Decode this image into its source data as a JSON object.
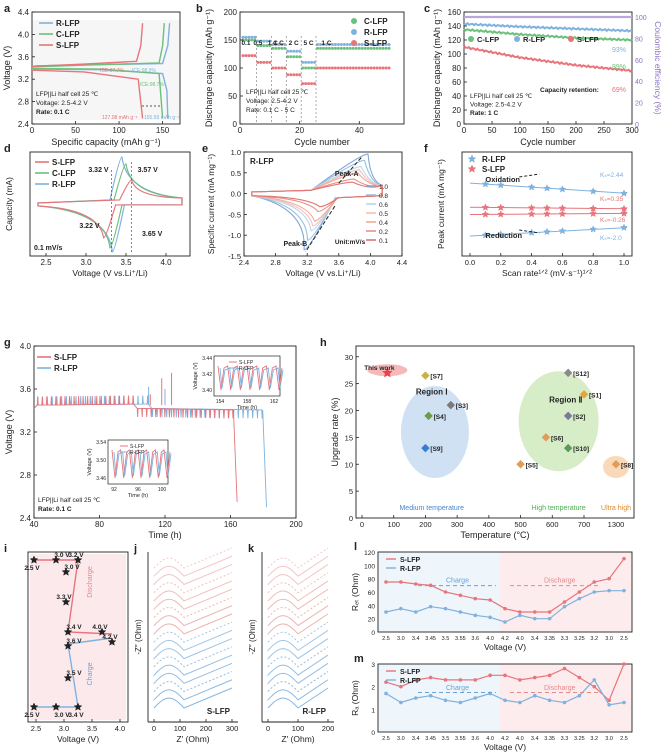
{
  "colors": {
    "s": "#e8747c",
    "c": "#6cc07a",
    "r": "#7fb2de",
    "ink": "#222",
    "guide": "#555",
    "purple": "#b9a7dc"
  },
  "panels": {
    "a": {
      "letter": "a",
      "xlabel": "Specific capacity (mAh g⁻¹)",
      "ylabel": "Voltage (V)",
      "xticks": [
        "0",
        "50",
        "100",
        "150"
      ],
      "yticks": [
        "2.4",
        "2.8",
        "3.2",
        "3.6",
        "4.0",
        "4.4"
      ],
      "legend": [
        "R-LFP",
        "C-LFP",
        "S-LFP"
      ],
      "notes": [
        "LFP||Li half cell 25 ℃",
        "Voltage: 2.5-4.2 V",
        "Rate: 0.1 C"
      ],
      "ice": [
        "ICE:97.7%",
        "ICE:98.9%",
        "ICE:98.7%"
      ],
      "caps": [
        "127.08 mAh g⁻¹",
        "155.59 mAh g⁻¹"
      ],
      "chart_data": {
        "type": "line",
        "xlim": [
          0,
          170
        ],
        "ylim": [
          2.4,
          4.4
        ],
        "series": [
          {
            "name": "R-LFP",
            "charge": [
              [
                0,
                3.42
              ],
              [
                5,
                3.44
              ],
              [
                80,
                3.46
              ],
              [
                150,
                3.48
              ],
              [
                156,
                3.8
              ],
              [
                158,
                4.2
              ]
            ],
            "discharge": [
              [
                0,
                3.38
              ],
              [
                80,
                3.37
              ],
              [
                150,
                3.3
              ],
              [
                155,
                3.0
              ],
              [
                156,
                2.5
              ]
            ]
          },
          {
            "name": "C-LFP",
            "charge": [
              [
                0,
                3.42
              ],
              [
                80,
                3.46
              ],
              [
                146,
                3.49
              ],
              [
                150,
                3.8
              ],
              [
                152,
                4.2
              ]
            ],
            "discharge": [
              [
                0,
                3.39
              ],
              [
                80,
                3.38
              ],
              [
                146,
                3.3
              ],
              [
                150,
                2.5
              ]
            ]
          },
          {
            "name": "S-LFP",
            "charge": [
              [
                0,
                3.43
              ],
              [
                60,
                3.47
              ],
              [
                120,
                3.52
              ],
              [
                125,
                3.8
              ],
              [
                127,
                4.2
              ]
            ],
            "discharge": [
              [
                0,
                3.36
              ],
              [
                60,
                3.33
              ],
              [
                122,
                3.2
              ],
              [
                127,
                2.5
              ]
            ]
          }
        ]
      }
    },
    "b": {
      "letter": "b",
      "xlabel": "Cycle number",
      "ylabel": "Discharge capacity (mAh g⁻¹)",
      "xticks": [
        "0",
        "20",
        "40"
      ],
      "yticks": [
        "0",
        "50",
        "100",
        "150",
        "200"
      ],
      "legend": [
        "C-LFP",
        "R-LFP",
        "S-LFP"
      ],
      "rates": [
        "0.1",
        "0.5",
        "1 C",
        "1 C",
        "2 C",
        "5 C",
        "1 C"
      ],
      "notes": [
        "LFP||Li half cell 25 ℃",
        "Voltage: 2.5-4.2 V",
        "Rate: 0.1 C - 5 C"
      ],
      "chart_data": {
        "type": "scatter",
        "xlim": [
          0,
          55
        ],
        "ylim": [
          0,
          200
        ],
        "series": [
          {
            "name": "C-LFP",
            "segments": [
              [
                1,
                5,
                150
              ],
              [
                6,
                10,
                140
              ],
              [
                11,
                15,
                135
              ],
              [
                16,
                20,
                120
              ],
              [
                21,
                25,
                100
              ],
              [
                26,
                50,
                135
              ]
            ]
          },
          {
            "name": "R-LFP",
            "segments": [
              [
                1,
                5,
                155
              ],
              [
                6,
                10,
                148
              ],
              [
                11,
                15,
                142
              ],
              [
                16,
                20,
                130
              ],
              [
                21,
                25,
                110
              ],
              [
                26,
                50,
                142
              ]
            ]
          },
          {
            "name": "S-LFP",
            "segments": [
              [
                1,
                5,
                122
              ],
              [
                6,
                10,
                110
              ],
              [
                11,
                15,
                100
              ],
              [
                16,
                20,
                88
              ],
              [
                21,
                25,
                72
              ],
              [
                26,
                50,
                100
              ]
            ]
          }
        ]
      }
    },
    "c": {
      "letter": "c",
      "xlabel": "Cycle number",
      "ylabel": "Discharge capacity (mAh g⁻¹)",
      "y2label": "Coulombic efficiency (%)",
      "xticks": [
        "0",
        "50",
        "100",
        "150",
        "200",
        "250",
        "300"
      ],
      "yticks": [
        "0",
        "20",
        "40",
        "60",
        "80",
        "100",
        "120",
        "140",
        "160"
      ],
      "y2ticks": [
        "0",
        "20",
        "40",
        "60",
        "80",
        "100"
      ],
      "legend": [
        "C-LFP",
        "R-LFP",
        "S-LFP"
      ],
      "retention": [
        "93%",
        "89%",
        "69%"
      ],
      "retention_label": "Capacity retention:",
      "notes": [
        "LFP||Li half cell 25 ℃",
        "Voltage: 2.5-4.2 V",
        "Rate: 1 C"
      ],
      "chart_data": {
        "type": "scatter",
        "xlim": [
          0,
          300
        ],
        "ylim": [
          0,
          160
        ],
        "series": [
          {
            "name": "R-LFP",
            "points": [
              [
                0,
                143
              ],
              [
                100,
                139
              ],
              [
                200,
                136
              ],
              [
                300,
                133
              ]
            ]
          },
          {
            "name": "C-LFP",
            "points": [
              [
                0,
                135
              ],
              [
                100,
                128
              ],
              [
                200,
                123
              ],
              [
                300,
                120
              ]
            ]
          },
          {
            "name": "S-LFP",
            "points": [
              [
                0,
                110
              ],
              [
                100,
                95
              ],
              [
                200,
                84
              ],
              [
                300,
                76
              ]
            ]
          },
          {
            "name": "CE",
            "points": [
              [
                0,
                99
              ],
              [
                300,
                100
              ]
            ]
          }
        ]
      }
    },
    "d": {
      "letter": "d",
      "xlabel": "Voltage (V vs.Li⁺/Li)",
      "ylabel": "Capacity (mA)",
      "xticks": [
        "2.5",
        "3.0",
        "3.5",
        "4.0"
      ],
      "legend": [
        "S-LFP",
        "C-LFP",
        "R-LFP"
      ],
      "labels": [
        "3.32 V",
        "3.57 V",
        "3.22 V",
        "3.65 V"
      ],
      "rate": "0.1 mV/s",
      "chart_data": {
        "type": "line",
        "xlim": [
          2.3,
          4.3
        ],
        "peaks": {
          "S-LFP": [
            3.57,
            3.22
          ],
          "C-LFP": [
            3.5,
            3.3
          ],
          "R-LFP": [
            3.45,
            3.33
          ]
        }
      }
    },
    "e": {
      "letter": "e",
      "title": "R-LFP",
      "xlabel": "Voltage (V vs.Li⁺/Li)",
      "ylabel": "Specific current (mA mg⁻¹)",
      "xticks": [
        "2.4",
        "2.8",
        "3.2",
        "3.6",
        "4.0",
        "4.4"
      ],
      "yticks": [
        "1.0",
        "0.5",
        "0.0",
        "-0.5",
        "-1.0",
        "-1.5"
      ],
      "peakA": "Peak-A",
      "peakB": "Peak-B",
      "unit": "Unit:mV/s",
      "scan_rates": [
        "1.0",
        "0.8",
        "0.6",
        "0.5",
        "0.4",
        "0.2",
        "0.1"
      ],
      "chart_data": {
        "type": "line",
        "xlim": [
          2.4,
          4.4
        ],
        "ylim": [
          -1.5,
          1.0
        ]
      }
    },
    "f": {
      "letter": "f",
      "xlabel": "Scan rate¹ᐟ² (mV·s⁻¹)¹ᐟ²",
      "ylabel": "Peak current (mA mg⁻¹)",
      "xticks": [
        "0.0",
        "0.2",
        "0.4",
        "0.6",
        "0.8",
        "1.0"
      ],
      "legend": [
        "R-LFP",
        "S-LFP"
      ],
      "ks": [
        "Kₛ=2.44",
        "Kₛ=0.35",
        "Kₛ=-0.26",
        "Kₛ=-2.0"
      ],
      "oxidation": "Oxidation",
      "reduction": "Reduction",
      "chart_data": {
        "type": "scatter",
        "x": [
          0.1,
          0.2,
          0.4,
          0.5,
          0.6,
          0.8,
          1.0
        ],
        "series": [
          {
            "name": "R-LFP oxidation",
            "slope": 2.44
          },
          {
            "name": "S-LFP oxidation",
            "slope": 0.35
          },
          {
            "name": "S-LFP reduction",
            "slope": -0.26
          },
          {
            "name": "R-LFP reduction",
            "slope": -2.0
          }
        ]
      }
    },
    "g": {
      "letter": "g",
      "xlabel": "Time (h)",
      "ylabel": "Voltage (V)",
      "xticks": [
        "40",
        "80",
        "120",
        "160",
        "200"
      ],
      "yticks": [
        "2.4",
        "2.8",
        "3.2",
        "3.6",
        "4.0"
      ],
      "legend": [
        "S-LFP",
        "R-LFP"
      ],
      "notes": [
        "LFP||Li half cell 25 ℃",
        "Rate: 0.1 C"
      ],
      "inset1": {
        "ylabel": "Voltage (V)",
        "xlabel": "Time (h)",
        "xticks": [
          "154",
          "158",
          "162"
        ],
        "yticks": [
          "3.40",
          "3.42",
          "3.44"
        ],
        "legend": [
          "S-LFP",
          "R-LFP"
        ]
      },
      "inset2": {
        "ylabel": "Voltage (V)",
        "xlabel": "Time (h)",
        "xticks": [
          "92",
          "96",
          "100"
        ],
        "yticks": [
          "3.46",
          "3.50",
          "3.54"
        ],
        "legend": [
          "S-LFP",
          "R-LFP"
        ]
      },
      "chart_data": {
        "type": "line",
        "xlim": [
          40,
          200
        ],
        "ylim": [
          2.4,
          4.0
        ]
      }
    },
    "h": {
      "letter": "h",
      "xlabel": "Temperature (°C)",
      "ylabel": "Upgrade rate (%)",
      "xticks": [
        "0",
        "100",
        "200",
        "300",
        "400",
        "500",
        "600",
        "700",
        "1300"
      ],
      "yticks": [
        "0",
        "5",
        "10",
        "15",
        "20",
        "25",
        "30"
      ],
      "this_work": "This work",
      "region1": "Region Ⅰ",
      "region2": "Region Ⅱ",
      "cats": [
        "Medium temperature",
        "High temperature",
        "Ultra high"
      ],
      "chart_data": {
        "type": "scatter",
        "points": [
          {
            "label": "This work",
            "x": 80,
            "y": 27
          },
          {
            "label": "[S7]",
            "x": 200,
            "y": 26.5
          },
          {
            "label": "[S3]",
            "x": 280,
            "y": 21
          },
          {
            "label": "[S4]",
            "x": 210,
            "y": 19
          },
          {
            "label": "[S9]",
            "x": 200,
            "y": 13
          },
          {
            "label": "[S12]",
            "x": 650,
            "y": 27
          },
          {
            "label": "[S1]",
            "x": 700,
            "y": 23
          },
          {
            "label": "[S2]",
            "x": 650,
            "y": 19
          },
          {
            "label": "[S6]",
            "x": 580,
            "y": 15
          },
          {
            "label": "[S10]",
            "x": 650,
            "y": 13
          },
          {
            "label": "[S5]",
            "x": 500,
            "y": 10
          },
          {
            "label": "[S8]",
            "x": 1300,
            "y": 10
          }
        ]
      }
    },
    "i": {
      "letter": "i",
      "xlabel": "Voltage (V)",
      "xticks": [
        "2.5",
        "3.0",
        "3.5",
        "4.0"
      ],
      "points": [
        "2.5 V",
        "3.0 V",
        "3.2 V",
        "3.0 V",
        "3.3 V",
        "3.4 V",
        "4.0 V",
        "3.6 V",
        "4.2 V",
        "3.5 V",
        "2.5 V",
        "3.0 V",
        "3.4 V"
      ],
      "discharge": "Discharge",
      "charge": "Charge"
    },
    "j": {
      "letter": "j",
      "ylabel": "-Z″ (Ohm)",
      "xlabel": "Z′ (Ohm)",
      "xticks": [
        "0",
        "100",
        "200",
        "300"
      ],
      "label": "S-LFP"
    },
    "k": {
      "letter": "k",
      "ylabel": "-Z″ (Ohm)",
      "xlabel": "Z′ (Ohm)",
      "xticks": [
        "0",
        "100",
        "200"
      ],
      "label": "R-LFP"
    },
    "l": {
      "letter": "l",
      "ylabel": "Rₑₜ (Ohm)",
      "xlabel": "Voltage (V)",
      "yticks": [
        "0",
        "20",
        "40",
        "60",
        "80",
        "100",
        "120"
      ],
      "xticks": [
        "2.5",
        "3.0",
        "3.4",
        "3.45",
        "3.5",
        "3.55",
        "3.6",
        "4.0",
        "4.2",
        "4.0",
        "3.4",
        "3.35",
        "3.3",
        "3.25",
        "3.2",
        "3.0",
        "2.5"
      ],
      "legend": [
        "S-LFP",
        "R-LFP"
      ],
      "charge": "Charge",
      "discharge": "Discharge",
      "chart_data": {
        "type": "line",
        "series": [
          {
            "name": "S-LFP",
            "values": [
              75,
              75,
              72,
              70,
              60,
              55,
              50,
              48,
              35,
              30,
              30,
              30,
              45,
              60,
              75,
              80,
              110
            ]
          },
          {
            "name": "R-LFP",
            "values": [
              30,
              35,
              30,
              38,
              35,
              30,
              25,
              22,
              15,
              25,
              20,
              20,
              38,
              50,
              60,
              62,
              62
            ]
          }
        ]
      }
    },
    "m": {
      "letter": "m",
      "ylabel": "Rₐ (Ohm)",
      "xlabel": "Voltage (V)",
      "yticks": [
        "0",
        "1",
        "2",
        "3"
      ],
      "xticks": [
        "2.5",
        "3.0",
        "3.4",
        "3.45",
        "3.5",
        "3.55",
        "3.6",
        "4.0",
        "4.2",
        "4.0",
        "3.4",
        "3.35",
        "3.3",
        "3.25",
        "3.2",
        "3.0",
        "2.5"
      ],
      "legend": [
        "S-LFP",
        "R-LFP"
      ],
      "charge": "Charge",
      "discharge": "Discharge",
      "chart_data": {
        "type": "line",
        "series": [
          {
            "name": "S-LFP",
            "values": [
              2.2,
              2.0,
              2.3,
              2.4,
              2.3,
              2.3,
              2.3,
              2.5,
              2.5,
              2.3,
              2.4,
              2.5,
              2.8,
              2.4,
              2.0,
              1.4,
              3.0
            ]
          },
          {
            "name": "R-LFP",
            "values": [
              1.7,
              1.3,
              1.5,
              1.6,
              1.4,
              1.3,
              1.5,
              1.7,
              1.4,
              1.3,
              1.6,
              1.4,
              1.3,
              1.6,
              2.3,
              1.2,
              1.3
            ]
          }
        ]
      }
    }
  }
}
